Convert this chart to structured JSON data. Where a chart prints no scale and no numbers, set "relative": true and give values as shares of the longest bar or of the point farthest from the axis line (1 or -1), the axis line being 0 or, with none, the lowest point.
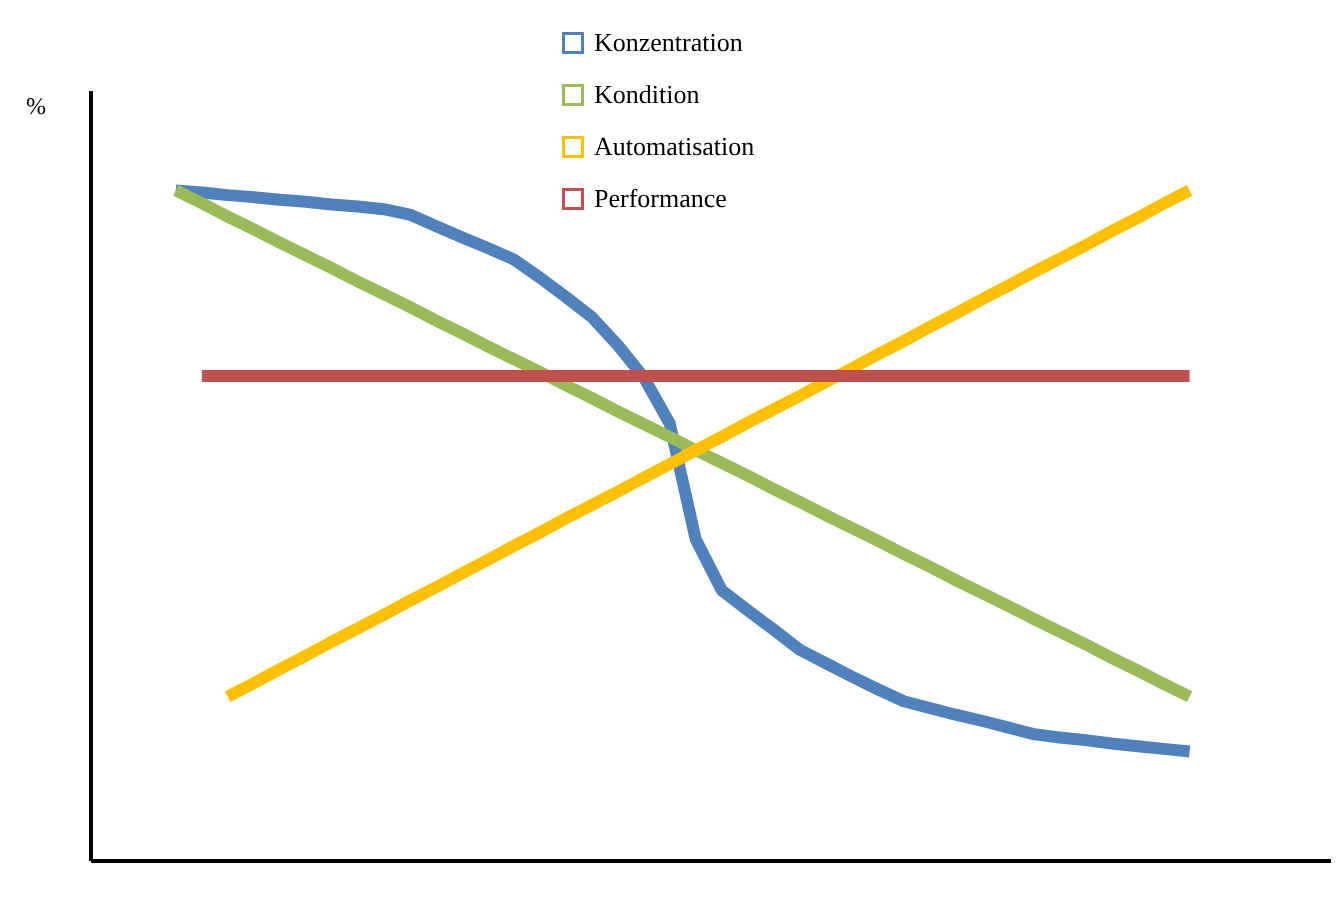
{
  "chart_data": {
    "type": "line",
    "relative": true,
    "annotations": [
      "%"
    ],
    "legend": "top",
    "categories": [
      null,
      null,
      null,
      null,
      null,
      null,
      null,
      null,
      null,
      null,
      null,
      null,
      null,
      null,
      null,
      null,
      null,
      null,
      null,
      null,
      null,
      null,
      null,
      null,
      null,
      null,
      null,
      null,
      null,
      null,
      null,
      null,
      null,
      null,
      null,
      null,
      null,
      null,
      null,
      null
    ],
    "series": [
      {
        "name": "Konzentration",
        "color": "#4f81bd",
        "values": [
          1.0,
          0.997,
          0.993,
          0.99,
          0.986,
          0.983,
          0.979,
          0.976,
          0.972,
          0.964,
          0.947,
          0.93,
          0.914,
          0.897,
          0.87,
          0.841,
          0.811,
          0.769,
          0.721,
          0.652,
          0.479,
          0.403,
          0.373,
          0.344,
          0.314,
          0.294,
          0.274,
          0.255,
          0.237,
          0.227,
          0.217,
          0.208,
          0.198,
          0.188,
          0.183,
          0.179,
          0.174,
          0.17,
          0.166,
          0.162
        ]
      },
      {
        "name": "Kondition",
        "color": "#9bbb59",
        "values": [
          1.0,
          0.981,
          0.961,
          0.942,
          0.922,
          0.903,
          0.884,
          0.864,
          0.845,
          0.826,
          0.806,
          0.787,
          0.767,
          0.748,
          0.729,
          0.709,
          0.69,
          0.67,
          0.651,
          0.632,
          0.612,
          0.593,
          0.574,
          0.554,
          0.535,
          0.515,
          0.496,
          0.477,
          0.457,
          0.438,
          0.418,
          0.399,
          0.38,
          0.36,
          0.341,
          0.322,
          0.302,
          0.283,
          0.263,
          0.244
        ]
      },
      {
        "name": "Automatisation",
        "color": "#ffc000",
        "values": [
          null,
          null,
          0.244,
          0.264,
          0.285,
          0.305,
          0.326,
          0.346,
          0.366,
          0.387,
          0.407,
          0.428,
          0.448,
          0.469,
          0.489,
          0.51,
          0.53,
          0.55,
          0.571,
          0.591,
          0.612,
          0.632,
          0.653,
          0.673,
          0.693,
          0.714,
          0.734,
          0.755,
          0.775,
          0.796,
          0.816,
          0.837,
          0.857,
          0.878,
          0.898,
          0.918,
          0.939,
          0.959,
          0.98,
          1.0
        ]
      },
      {
        "name": "Performance",
        "color": "#c0504d",
        "values": [
          null,
          0.723,
          0.723,
          0.723,
          0.723,
          0.723,
          0.723,
          0.723,
          0.723,
          0.723,
          0.723,
          0.723,
          0.723,
          0.723,
          0.723,
          0.723,
          0.723,
          0.723,
          0.723,
          0.723,
          0.723,
          0.723,
          0.723,
          0.723,
          0.723,
          0.723,
          0.723,
          0.723,
          0.723,
          0.723,
          0.723,
          0.723,
          0.723,
          0.723,
          0.723,
          0.723,
          0.723,
          0.723,
          0.723,
          0.723
        ]
      }
    ]
  }
}
